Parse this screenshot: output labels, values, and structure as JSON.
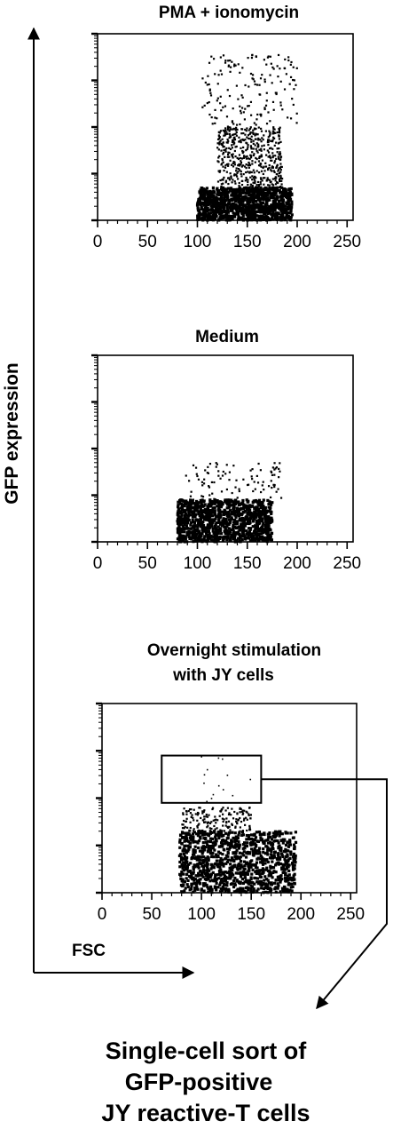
{
  "chart_data": [
    {
      "type": "scatter",
      "title": "PMA + ionomycin",
      "x_ticks": [
        "0",
        "50",
        "100",
        "150",
        "200",
        "250"
      ],
      "xlim": [
        0,
        256
      ],
      "ylim": [
        0,
        4
      ],
      "y_scale": "log (4 decades, unlabeled ticks)",
      "grid": false,
      "points_summary": [
        {
          "x_range": [
            100,
            195
          ],
          "y_range": [
            0,
            0.7
          ],
          "density": "very high"
        },
        {
          "x_range": [
            120,
            185
          ],
          "y_range": [
            0.7,
            2.0
          ],
          "density": "high"
        },
        {
          "x_range": [
            105,
            200
          ],
          "y_range": [
            2.0,
            3.55
          ],
          "density": "moderate"
        }
      ]
    },
    {
      "type": "scatter",
      "title": "Medium",
      "x_ticks": [
        "0",
        "50",
        "100",
        "150",
        "200",
        "250"
      ],
      "xlim": [
        0,
        256
      ],
      "ylim": [
        0,
        4
      ],
      "y_scale": "log (4 decades, unlabeled ticks)",
      "grid": false,
      "points_summary": [
        {
          "x_range": [
            80,
            175
          ],
          "y_range": [
            0,
            0.9
          ],
          "density": "very high"
        },
        {
          "x_range": [
            85,
            185
          ],
          "y_range": [
            0.9,
            1.7
          ],
          "density": "low"
        }
      ]
    },
    {
      "type": "scatter",
      "title": "Overnight stimulation with JY cells",
      "title_lines": [
        "Overnight stimulation",
        "with JY cells"
      ],
      "x_ticks": [
        "0",
        "50",
        "100",
        "150",
        "200",
        "250"
      ],
      "xlim": [
        0,
        256
      ],
      "ylim": [
        0,
        4
      ],
      "y_scale": "log (4 decades, unlabeled ticks)",
      "grid": false,
      "gate": {
        "x": [
          60,
          160
        ],
        "y": [
          1.9,
          2.9
        ]
      },
      "points_summary": [
        {
          "x_range": [
            78,
            195
          ],
          "y_range": [
            0,
            1.3
          ],
          "density": "very high"
        },
        {
          "x_range": [
            80,
            150
          ],
          "y_range": [
            1.3,
            1.8
          ],
          "density": "moderate"
        },
        {
          "x_range": [
            100,
            150
          ],
          "y_range": [
            1.9,
            2.9
          ],
          "density": "sparse (gated)"
        }
      ]
    }
  ],
  "axes": {
    "y_label": "GFP expression",
    "x_label": "FSC"
  },
  "outcome": {
    "lines": [
      "Single-cell sort of",
      "GFP-positive",
      "JY reactive-T cells"
    ]
  },
  "colors": {
    "ink": "#000000",
    "background": "#ffffff"
  }
}
